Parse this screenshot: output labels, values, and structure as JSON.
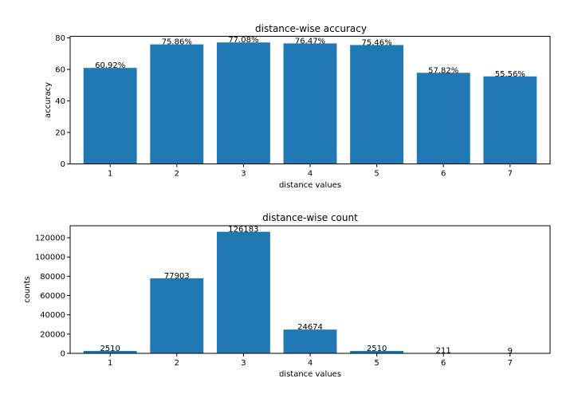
{
  "chart_data": [
    {
      "type": "bar",
      "title": "distance-wise accuracy",
      "xlabel": "distance values",
      "ylabel": "accuracy",
      "categories": [
        "1",
        "2",
        "3",
        "4",
        "5",
        "6",
        "7"
      ],
      "values": [
        60.92,
        75.86,
        77.08,
        76.47,
        75.46,
        57.82,
        55.56
      ],
      "data_labels": [
        "60.92%",
        "75.86%",
        "77.08%",
        "76.47%",
        "75.46%",
        "57.82%",
        "55.56%"
      ],
      "ylim": [
        0,
        81
      ],
      "yticks": [
        0,
        20,
        40,
        60,
        80
      ],
      "grid": false,
      "bar_color": "#1f77b4"
    },
    {
      "type": "bar",
      "title": "distance-wise count",
      "xlabel": "distance values",
      "ylabel": "counts",
      "categories": [
        "1",
        "2",
        "3",
        "4",
        "5",
        "6",
        "7"
      ],
      "values": [
        2510,
        77903,
        126183,
        24674,
        2510,
        211,
        9
      ],
      "data_labels": [
        "2510",
        "77903",
        "126183",
        "24674",
        "2510",
        "211",
        "9"
      ],
      "ylim": [
        0,
        132492
      ],
      "yticks": [
        0,
        20000,
        40000,
        60000,
        80000,
        100000,
        120000
      ],
      "grid": false,
      "bar_color": "#1f77b4"
    }
  ]
}
